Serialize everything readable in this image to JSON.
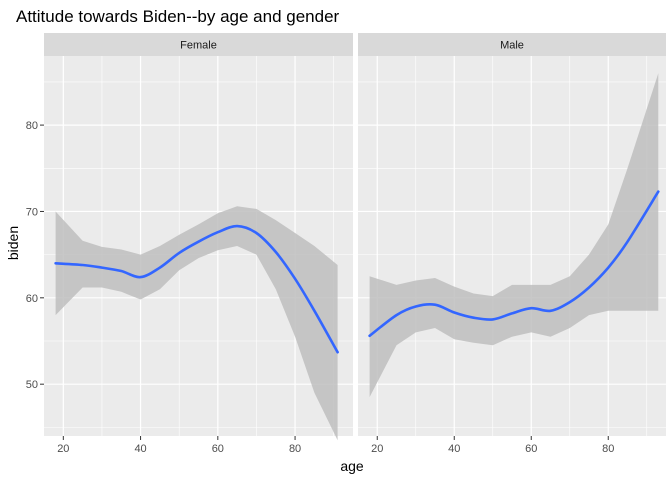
{
  "chart_data": {
    "type": "line",
    "title": "Attitude towards Biden--by age and gender",
    "xlabel": "age",
    "ylabel": "biden",
    "xlim": [
      15,
      95
    ],
    "ylim": [
      44,
      88
    ],
    "x_ticks": [
      20,
      40,
      60,
      80
    ],
    "y_ticks": [
      50,
      60,
      70,
      80
    ],
    "grid": true,
    "legend": "none",
    "colors": {
      "line": "#3366FF",
      "ribbon": "#BEBEBE",
      "panel": "#EBEBEB",
      "strip": "#D9D9D9",
      "grid": "#FFFFFF"
    },
    "panels": [
      {
        "label": "Female",
        "series": [
          {
            "x": [
              18,
              25,
              30,
              35,
              40,
              45,
              50,
              55,
              60,
              65,
              70,
              75,
              80,
              85,
              91
            ],
            "y": [
              64.0,
              63.8,
              63.5,
              63.1,
              62.4,
              63.5,
              65.2,
              66.5,
              67.6,
              68.3,
              67.5,
              65.3,
              62.2,
              58.5,
              53.7
            ],
            "lower": [
              58.0,
              61.2,
              61.2,
              60.7,
              59.8,
              61.0,
              63.2,
              64.6,
              65.5,
              66.0,
              65.0,
              61.0,
              55.5,
              49.0,
              43.5
            ],
            "upper": [
              70.0,
              66.6,
              65.9,
              65.6,
              65.0,
              66.0,
              67.3,
              68.5,
              69.8,
              70.6,
              70.3,
              69.0,
              67.5,
              66.0,
              63.8
            ]
          }
        ]
      },
      {
        "label": "Male",
        "series": [
          {
            "x": [
              18,
              25,
              30,
              35,
              40,
              45,
              50,
              55,
              60,
              65,
              70,
              75,
              80,
              85,
              93
            ],
            "y": [
              55.6,
              58.0,
              59.0,
              59.2,
              58.3,
              57.7,
              57.5,
              58.2,
              58.8,
              58.5,
              59.5,
              61.2,
              63.5,
              66.5,
              72.3
            ],
            "lower": [
              48.5,
              54.5,
              56.0,
              56.5,
              55.2,
              54.8,
              54.5,
              55.5,
              56.0,
              55.5,
              56.5,
              58.0,
              58.5,
              58.5,
              58.5
            ],
            "upper": [
              62.5,
              61.5,
              62.0,
              62.3,
              61.3,
              60.5,
              60.2,
              61.5,
              61.5,
              61.5,
              62.5,
              65.0,
              68.5,
              75.0,
              86.0
            ]
          }
        ]
      }
    ]
  }
}
